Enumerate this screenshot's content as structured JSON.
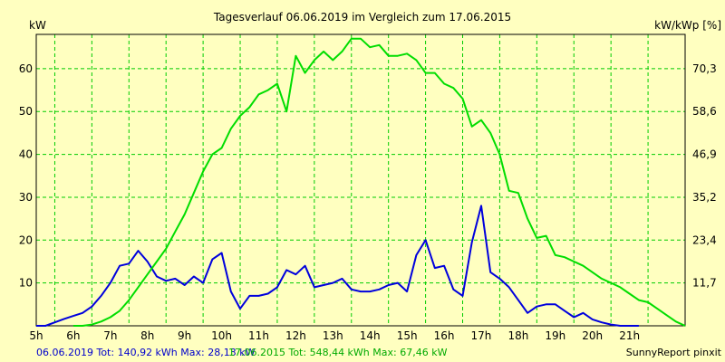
{
  "chart_data": {
    "type": "line",
    "title": "Tagesverlauf 06.06.2019 im Vergleich zum 17.06.2015",
    "ylabel_left": "kW",
    "ylabel_right": "kW/kWp [%]",
    "ylim": [
      0,
      68
    ],
    "y_ticks": [
      10,
      20,
      30,
      40,
      50,
      60
    ],
    "y_right_ticks": [
      "11,7",
      "23,4",
      "35,2",
      "46,9",
      "58,6",
      "70,3"
    ],
    "x_range": [
      4.5,
      22.0
    ],
    "x_ticks": [
      "5h",
      "6h",
      "7h",
      "8h",
      "9h",
      "10h",
      "11h",
      "12h",
      "13h",
      "14h",
      "15h",
      "16h",
      "17h",
      "18h",
      "19h",
      "20h",
      "21h"
    ],
    "grid": true,
    "series": [
      {
        "name": "06.06.2019",
        "color": "#0000dd",
        "points": [
          [
            4.5,
            0
          ],
          [
            4.75,
            0
          ],
          [
            5.0,
            0.8
          ],
          [
            5.25,
            1.6
          ],
          [
            5.5,
            2.3
          ],
          [
            5.75,
            3
          ],
          [
            6.0,
            4.5
          ],
          [
            6.25,
            7
          ],
          [
            6.5,
            10
          ],
          [
            6.75,
            14
          ],
          [
            7.0,
            14.5
          ],
          [
            7.25,
            17.5
          ],
          [
            7.5,
            15
          ],
          [
            7.75,
            11.5
          ],
          [
            8.0,
            10.5
          ],
          [
            8.25,
            11
          ],
          [
            8.5,
            9.5
          ],
          [
            8.75,
            11.5
          ],
          [
            9.0,
            10
          ],
          [
            9.25,
            15.5
          ],
          [
            9.5,
            17
          ],
          [
            9.75,
            8
          ],
          [
            10.0,
            4
          ],
          [
            10.25,
            7
          ],
          [
            10.5,
            7
          ],
          [
            10.75,
            7.5
          ],
          [
            11.0,
            9
          ],
          [
            11.25,
            13
          ],
          [
            11.5,
            12
          ],
          [
            11.75,
            14
          ],
          [
            12.0,
            9
          ],
          [
            12.25,
            9.5
          ],
          [
            12.5,
            10
          ],
          [
            12.75,
            11
          ],
          [
            13.0,
            8.5
          ],
          [
            13.25,
            8
          ],
          [
            13.5,
            8
          ],
          [
            13.75,
            8.5
          ],
          [
            14.0,
            9.5
          ],
          [
            14.25,
            10
          ],
          [
            14.5,
            8
          ],
          [
            14.75,
            16.5
          ],
          [
            15.0,
            20
          ],
          [
            15.25,
            13.5
          ],
          [
            15.5,
            14
          ],
          [
            15.75,
            8.5
          ],
          [
            16.0,
            7
          ],
          [
            16.25,
            19.5
          ],
          [
            16.5,
            28
          ],
          [
            16.75,
            12.5
          ],
          [
            17.0,
            11
          ],
          [
            17.25,
            9
          ],
          [
            17.5,
            6
          ],
          [
            17.75,
            3
          ],
          [
            18.0,
            4.5
          ],
          [
            18.25,
            5
          ],
          [
            18.5,
            5
          ],
          [
            18.75,
            3.5
          ],
          [
            19.0,
            2
          ],
          [
            19.25,
            3
          ],
          [
            19.5,
            1.5
          ],
          [
            19.75,
            0.8
          ],
          [
            20.0,
            0.3
          ],
          [
            20.25,
            0
          ],
          [
            20.75,
            0
          ]
        ]
      },
      {
        "name": "17.06.2015",
        "color": "#00dd00",
        "points": [
          [
            5.5,
            0
          ],
          [
            5.75,
            0
          ],
          [
            6.0,
            0.3
          ],
          [
            6.25,
            1
          ],
          [
            6.5,
            2
          ],
          [
            6.75,
            3.5
          ],
          [
            7.0,
            6
          ],
          [
            7.25,
            9
          ],
          [
            7.5,
            12
          ],
          [
            7.75,
            15
          ],
          [
            8.0,
            18
          ],
          [
            8.25,
            22
          ],
          [
            8.5,
            26
          ],
          [
            8.75,
            31
          ],
          [
            9.0,
            36
          ],
          [
            9.25,
            40
          ],
          [
            9.5,
            41.5
          ],
          [
            9.75,
            46
          ],
          [
            10.0,
            49
          ],
          [
            10.25,
            51
          ],
          [
            10.5,
            54
          ],
          [
            10.75,
            55
          ],
          [
            11.0,
            56.5
          ],
          [
            11.25,
            50
          ],
          [
            11.5,
            63
          ],
          [
            11.75,
            59
          ],
          [
            12.0,
            62
          ],
          [
            12.25,
            64
          ],
          [
            12.5,
            62
          ],
          [
            12.75,
            64
          ],
          [
            13.0,
            67
          ],
          [
            13.25,
            67
          ],
          [
            13.5,
            65
          ],
          [
            13.75,
            65.5
          ],
          [
            14.0,
            63
          ],
          [
            14.25,
            63
          ],
          [
            14.5,
            63.5
          ],
          [
            14.75,
            62
          ],
          [
            15.0,
            59
          ],
          [
            15.25,
            59
          ],
          [
            15.5,
            56.5
          ],
          [
            15.75,
            55.5
          ],
          [
            16.0,
            53
          ],
          [
            16.25,
            46.5
          ],
          [
            16.5,
            48
          ],
          [
            16.75,
            45
          ],
          [
            17.0,
            40
          ],
          [
            17.25,
            31.5
          ],
          [
            17.5,
            31
          ],
          [
            17.75,
            25
          ],
          [
            18.0,
            20.5
          ],
          [
            18.25,
            21
          ],
          [
            18.5,
            16.5
          ],
          [
            18.75,
            16
          ],
          [
            19.0,
            15
          ],
          [
            19.25,
            14
          ],
          [
            19.5,
            12.5
          ],
          [
            19.75,
            11
          ],
          [
            20.0,
            10
          ],
          [
            20.25,
            9
          ],
          [
            20.5,
            7.5
          ],
          [
            20.75,
            6
          ],
          [
            21.0,
            5.5
          ],
          [
            21.25,
            4
          ],
          [
            21.5,
            2.5
          ],
          [
            21.75,
            1
          ],
          [
            22.0,
            0
          ]
        ]
      }
    ]
  },
  "footer": {
    "blue_summary": "06.06.2019 Tot: 140,92 kWh Max: 28,13 kW",
    "green_summary": "17.06.2015 Tot: 548,44 kWh Max: 67,46 kW",
    "credit": "SunnyReport pinxit"
  }
}
